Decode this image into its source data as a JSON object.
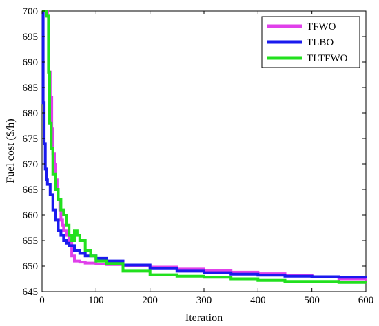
{
  "chart_data": {
    "type": "line",
    "xlabel": "Iteration",
    "ylabel": "Fuel cost ($/h)",
    "xlim": [
      0,
      600
    ],
    "ylim": [
      645,
      700
    ],
    "xticks": [
      0,
      100,
      200,
      300,
      400,
      500,
      600
    ],
    "yticks": [
      645,
      650,
      655,
      660,
      665,
      670,
      675,
      680,
      685,
      690,
      695,
      700
    ],
    "grid": false,
    "legend_position": "top-right",
    "series": [
      {
        "name": "TFWO",
        "color": "#e040ea",
        "x": [
          0,
          6,
          10,
          12,
          15,
          18,
          20,
          23,
          25,
          28,
          30,
          33,
          35,
          38,
          40,
          45,
          50,
          55,
          60,
          70,
          80,
          100,
          120,
          150,
          200,
          250,
          300,
          350,
          400,
          450,
          500,
          550,
          600
        ],
        "y": [
          700,
          700,
          699,
          688,
          683,
          677,
          672,
          670,
          667,
          665,
          663,
          661,
          659,
          658,
          657,
          656,
          655,
          652,
          651,
          650.8,
          650.6,
          650.4,
          650.3,
          650.1,
          649.8,
          649.4,
          649.1,
          648.8,
          648.5,
          648.2,
          647.9,
          647.5,
          647.2
        ]
      },
      {
        "name": "TLBO",
        "color": "#1a1aee",
        "x": [
          0,
          2,
          4,
          6,
          8,
          10,
          15,
          20,
          25,
          30,
          35,
          40,
          45,
          50,
          60,
          70,
          80,
          100,
          120,
          150,
          200,
          250,
          300,
          350,
          400,
          450,
          500,
          550,
          600
        ],
        "y": [
          700,
          682,
          674,
          669,
          667,
          666,
          664,
          661,
          659,
          657,
          656,
          655,
          654.5,
          654,
          653,
          652.5,
          652,
          651.5,
          651,
          650.2,
          649.5,
          649,
          648.7,
          648.4,
          648.2,
          648,
          647.9,
          647.8,
          647.6
        ]
      },
      {
        "name": "TLTFWO",
        "color": "#22e01e",
        "x": [
          0,
          5,
          9,
          12,
          14,
          17,
          20,
          25,
          30,
          35,
          40,
          45,
          50,
          55,
          60,
          65,
          70,
          80,
          90,
          100,
          120,
          150,
          200,
          250,
          300,
          350,
          400,
          450,
          500,
          550,
          600
        ],
        "y": [
          700,
          700,
          699,
          688,
          678,
          673,
          668,
          665,
          663,
          661,
          660,
          658,
          656,
          655,
          657,
          656,
          655,
          653,
          652,
          651,
          650.5,
          649,
          648.3,
          648,
          647.8,
          647.5,
          647.2,
          647,
          647,
          646.8,
          646.7
        ]
      }
    ]
  }
}
